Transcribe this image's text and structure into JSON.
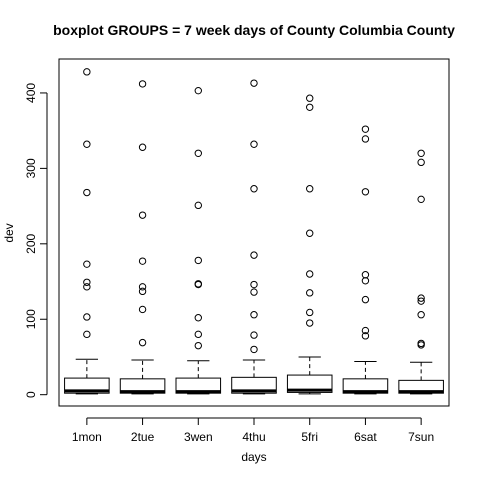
{
  "chart_data": {
    "type": "boxplot",
    "title": "boxplot GROUPS = 7 week days of County Columbia County",
    "xlabel": "days",
    "ylabel": "dev",
    "categories": [
      "1mon",
      "2tue",
      "3wen",
      "4thu",
      "5fri",
      "6sat",
      "7sun"
    ],
    "ylim": [
      -15,
      445
    ],
    "yticks": [
      0,
      100,
      200,
      300,
      400
    ],
    "boxes": [
      {
        "name": "1mon",
        "min": 1,
        "q1": 2,
        "median": 5,
        "q3": 22,
        "max": 47,
        "outliers": [
          428,
          332,
          268,
          173,
          149,
          143,
          103,
          80
        ]
      },
      {
        "name": "2tue",
        "min": 1,
        "q1": 2,
        "median": 4,
        "q3": 21,
        "max": 46,
        "outliers": [
          412,
          328,
          238,
          177,
          143,
          137,
          113,
          69
        ]
      },
      {
        "name": "3wen",
        "min": 1,
        "q1": 2,
        "median": 4,
        "q3": 22,
        "max": 45,
        "outliers": [
          403,
          320,
          251,
          178,
          147,
          146,
          102,
          80,
          65
        ]
      },
      {
        "name": "4thu",
        "min": 1,
        "q1": 2,
        "median": 5,
        "q3": 23,
        "max": 46,
        "outliers": [
          413,
          332,
          273,
          185,
          146,
          136,
          106,
          79,
          60
        ]
      },
      {
        "name": "5fri",
        "min": 1,
        "q1": 3,
        "median": 6,
        "q3": 26,
        "max": 50,
        "outliers": [
          393,
          381,
          273,
          214,
          160,
          135,
          109,
          95
        ]
      },
      {
        "name": "6sat",
        "min": 1,
        "q1": 2,
        "median": 4,
        "q3": 21,
        "max": 44,
        "outliers": [
          352,
          339,
          269,
          159,
          151,
          126,
          85,
          78
        ]
      },
      {
        "name": "7sun",
        "min": 1,
        "q1": 2,
        "median": 4,
        "q3": 19,
        "max": 43,
        "outliers": [
          320,
          308,
          259,
          128,
          124,
          106,
          68,
          66
        ]
      }
    ],
    "grid": false,
    "legend": "none"
  }
}
